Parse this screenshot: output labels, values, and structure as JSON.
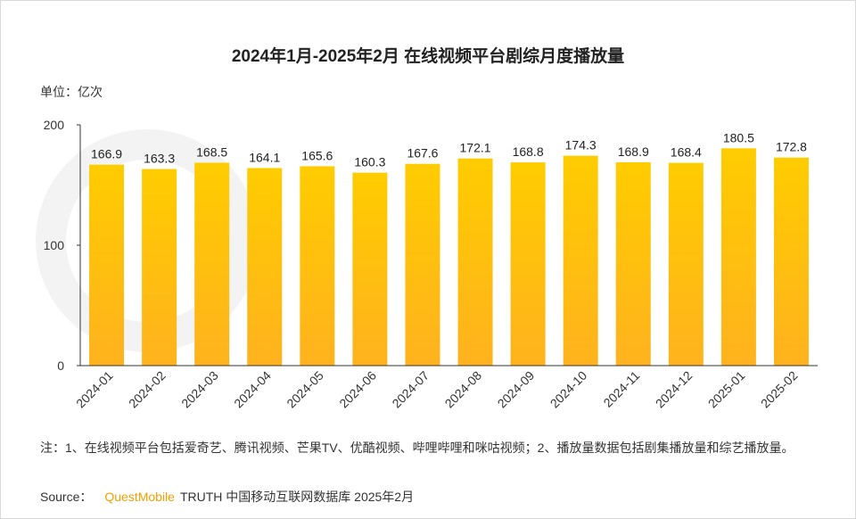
{
  "title": "2024年1月-2025年2月 在线视频平台剧综月度播放量",
  "unit_label": "单位：亿次",
  "note": "注：1、在线视频平台包括爱奇艺、腾讯视频、芒果TV、优酷视频、哔哩哔哩和咪咕视频；2、播放量数据包括剧集播放量和综艺播放量。",
  "source": {
    "label": "Source：",
    "brand": "QuestMobile",
    "rest": "TRUTH 中国移动互联网数据库 2025年2月"
  },
  "colors": {
    "bar_top": "#FFCC00",
    "bar_bottom": "#FFB21E",
    "axis": "#333333"
  },
  "chart_data": {
    "type": "bar",
    "categories": [
      "2024-01",
      "2024-02",
      "2024-03",
      "2024-04",
      "2024-05",
      "2024-06",
      "2024-07",
      "2024-08",
      "2024-09",
      "2024-10",
      "2024-11",
      "2024-12",
      "2025-01",
      "2025-02"
    ],
    "values": [
      166.9,
      163.3,
      168.5,
      164.1,
      165.6,
      160.3,
      167.6,
      172.1,
      168.8,
      174.3,
      168.9,
      168.4,
      180.5,
      172.8
    ],
    "value_labels": [
      "166.9",
      "163.3",
      "168.5",
      "164.1",
      "165.6",
      "160.3",
      "167.6",
      "172.1",
      "168.8",
      "174.3",
      "168.9",
      "168.4",
      "180.5",
      "172.8"
    ],
    "ylim": [
      0,
      200
    ],
    "yticks": [
      0,
      100,
      200
    ],
    "ytick_labels": [
      "0",
      "100",
      "200"
    ],
    "grid": false,
    "legend": "none"
  }
}
